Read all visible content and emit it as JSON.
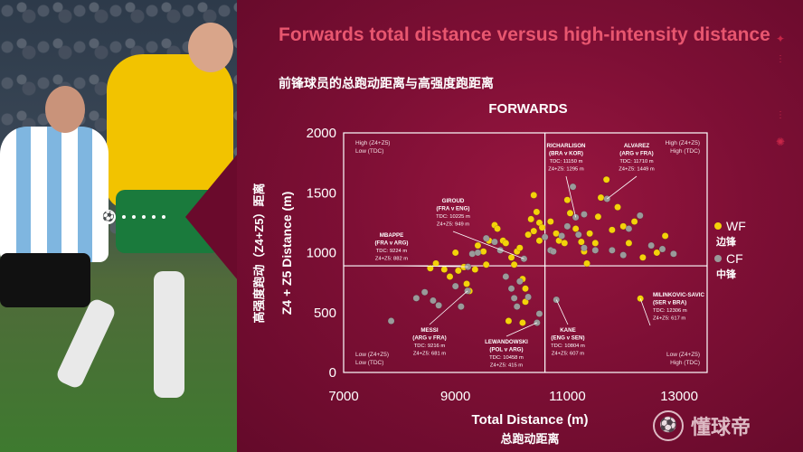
{
  "header": {
    "title_en": "Forwards total distance versus high-intensity distance",
    "title_zh": "前锋球员的总跑动距离与高强度跑距离"
  },
  "brand": {
    "name": "懂球帝",
    "logo_icon": "soccer-ball-icon"
  },
  "colors": {
    "wf": "#f4d20a",
    "cf": "#9a9a9a",
    "accent": "#e8566f"
  },
  "chart_data": {
    "type": "scatter",
    "title": "FORWARDS",
    "xlabel": "Total Distance (m)",
    "xlabel_zh": "总跑动距离",
    "ylabel": "Z4 + Z5 Distance (m)",
    "ylabel_zh": "高强度跑动（Z4+Z5）距离",
    "xlim": [
      7000,
      13500
    ],
    "ylim": [
      0,
      2000
    ],
    "xticks": [
      7000,
      9000,
      11000,
      13000
    ],
    "yticks": [
      0,
      500,
      1000,
      1500,
      2000
    ],
    "dividers": {
      "x": 10600,
      "y": 890
    },
    "quadrant_labels": {
      "top_left": [
        "High (Z4+Z5)",
        "Low (TDC)"
      ],
      "top_right": [
        "High (Z4+Z5)",
        "High (TDC)"
      ],
      "bottom_left": [
        "Low (Z4+Z5)",
        "Low (TDC)"
      ],
      "bottom_right": [
        "Low (Z4+Z5)",
        "High (TDC)"
      ]
    },
    "legend": [
      {
        "code": "WF",
        "zh": "边锋",
        "color": "#f4d20a"
      },
      {
        "code": "CF",
        "zh": "中锋",
        "color": "#9a9a9a"
      }
    ],
    "series": [
      {
        "name": "WF",
        "points": [
          [
            8550,
            870
          ],
          [
            8650,
            910
          ],
          [
            8800,
            860
          ],
          [
            8900,
            800
          ],
          [
            9000,
            1000
          ],
          [
            9050,
            850
          ],
          [
            9150,
            880
          ],
          [
            9200,
            740
          ],
          [
            9250,
            680
          ],
          [
            9350,
            860
          ],
          [
            9400,
            1060
          ],
          [
            9500,
            1010
          ],
          [
            9550,
            900
          ],
          [
            9600,
            1100
          ],
          [
            9700,
            1230
          ],
          [
            9750,
            1200
          ],
          [
            9850,
            1100
          ],
          [
            9900,
            1080
          ],
          [
            10000,
            960
          ],
          [
            10050,
            900
          ],
          [
            10100,
            1010
          ],
          [
            10150,
            1040
          ],
          [
            10200,
            780
          ],
          [
            10250,
            700
          ],
          [
            10300,
            1150
          ],
          [
            10350,
            1280
          ],
          [
            10400,
            1180
          ],
          [
            10450,
            1340
          ],
          [
            10500,
            1250
          ],
          [
            10550,
            1210
          ],
          [
            10700,
            1260
          ],
          [
            10800,
            1160
          ],
          [
            10850,
            1100
          ],
          [
            10950,
            1080
          ],
          [
            11000,
            1440
          ],
          [
            11050,
            1330
          ],
          [
            11150,
            1200
          ],
          [
            11250,
            1090
          ],
          [
            11300,
            1010
          ],
          [
            11350,
            910
          ],
          [
            11400,
            1160
          ],
          [
            11500,
            1080
          ],
          [
            11550,
            1300
          ],
          [
            11600,
            1460
          ],
          [
            11700,
            1610
          ],
          [
            11800,
            1190
          ],
          [
            11900,
            1380
          ],
          [
            12000,
            1220
          ],
          [
            12100,
            1080
          ],
          [
            12200,
            1260
          ],
          [
            12350,
            960
          ],
          [
            12600,
            1000
          ],
          [
            12750,
            1140
          ],
          [
            12306,
            617
          ],
          [
            10200,
            415
          ],
          [
            10250,
            590
          ],
          [
            10400,
            1480
          ],
          [
            10500,
            1100
          ],
          [
            9950,
            430
          ]
        ]
      },
      {
        "name": "CF",
        "points": [
          [
            7850,
            430
          ],
          [
            8300,
            620
          ],
          [
            8450,
            670
          ],
          [
            8600,
            600
          ],
          [
            8700,
            560
          ],
          [
            9000,
            720
          ],
          [
            9100,
            550
          ],
          [
            9224,
            882
          ],
          [
            9300,
            990
          ],
          [
            9400,
            1000
          ],
          [
            9550,
            1120
          ],
          [
            9700,
            1090
          ],
          [
            9800,
            1020
          ],
          [
            9900,
            800
          ],
          [
            10000,
            700
          ],
          [
            10050,
            620
          ],
          [
            10100,
            550
          ],
          [
            10150,
            760
          ],
          [
            10300,
            630
          ],
          [
            10458,
            415
          ],
          [
            10500,
            490
          ],
          [
            10600,
            1130
          ],
          [
            10700,
            1020
          ],
          [
            10750,
            1010
          ],
          [
            10804,
            607
          ],
          [
            10900,
            1140
          ],
          [
            11000,
            1220
          ],
          [
            11100,
            1550
          ],
          [
            11150,
            1295
          ],
          [
            11200,
            1150
          ],
          [
            11300,
            1040
          ],
          [
            11500,
            1020
          ],
          [
            11710,
            1449
          ],
          [
            11800,
            1020
          ],
          [
            12000,
            980
          ],
          [
            12100,
            1200
          ],
          [
            12300,
            1310
          ],
          [
            12500,
            1060
          ],
          [
            12700,
            1030
          ],
          [
            12900,
            990
          ],
          [
            9216,
            681
          ],
          [
            10225,
            949
          ],
          [
            11300,
            1320
          ]
        ]
      }
    ],
    "annotations": [
      {
        "name": "RICHARLISON",
        "match": "(BRA v KOR)",
        "tdc": "TDC: 11150 m",
        "z45": "Z4+Z5: 1295 m"
      },
      {
        "name": "ALVAREZ",
        "match": "(ARG v FRA)",
        "tdc": "TDC: 11710 m",
        "z45": "Z4+Z5: 1449 m"
      },
      {
        "name": "GIROUD",
        "match": "(FRA v ENG)",
        "tdc": "TDC: 10225 m",
        "z45": "Z4+Z5: 949 m"
      },
      {
        "name": "MBAPPE",
        "match": "(FRA v ARG)",
        "tdc": "TDC: 9224 m",
        "z45": "Z4+Z5: 882 m"
      },
      {
        "name": "MILINKOVIC-SAVIC",
        "match": "(SER v BRA)",
        "tdc": "TDC: 12306 m",
        "z45": "Z4+Z5: 617 m"
      },
      {
        "name": "MESSI",
        "match": "(ARG v FRA)",
        "tdc": "TDC: 9216 m",
        "z45": "Z4+Z5: 681 m"
      },
      {
        "name": "KANE",
        "match": "(ENG v SEN)",
        "tdc": "TDC: 10804 m",
        "z45": "Z4+Z5: 607 m"
      },
      {
        "name": "LEWANDOWSKI",
        "match": "(POL v ARG)",
        "tdc": "TDC: 10458 m",
        "z45": "Z4+Z5: 415 m"
      }
    ]
  }
}
